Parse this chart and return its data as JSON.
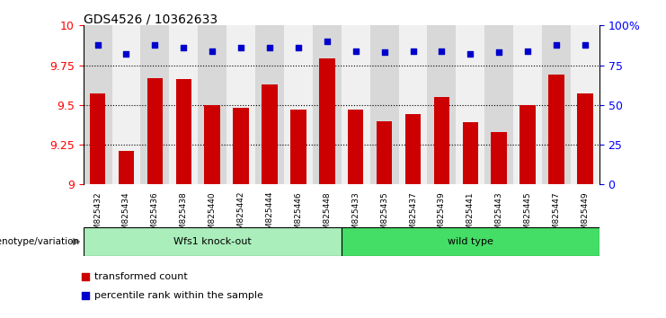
{
  "title": "GDS4526 / 10362633",
  "categories": [
    "GSM825432",
    "GSM825434",
    "GSM825436",
    "GSM825438",
    "GSM825440",
    "GSM825442",
    "GSM825444",
    "GSM825446",
    "GSM825448",
    "GSM825433",
    "GSM825435",
    "GSM825437",
    "GSM825439",
    "GSM825441",
    "GSM825443",
    "GSM825445",
    "GSM825447",
    "GSM825449"
  ],
  "bar_values": [
    9.57,
    9.21,
    9.67,
    9.66,
    9.5,
    9.48,
    9.63,
    9.47,
    9.79,
    9.47,
    9.4,
    9.44,
    9.55,
    9.39,
    9.33,
    9.5,
    9.69,
    9.57
  ],
  "percentile_values": [
    88,
    82,
    88,
    86,
    84,
    86,
    86,
    86,
    90,
    84,
    83,
    84,
    84,
    82,
    83,
    84,
    88,
    88
  ],
  "bar_color": "#cc0000",
  "percentile_color": "#0000cc",
  "ylim_left": [
    9.0,
    10.0
  ],
  "ylim_right": [
    0,
    100
  ],
  "yticks_left": [
    9.0,
    9.25,
    9.5,
    9.75,
    10.0
  ],
  "ytick_labels_left": [
    "9",
    "9.25",
    "9.5",
    "9.75",
    "10"
  ],
  "yticks_right": [
    0,
    25,
    50,
    75,
    100
  ],
  "ytick_labels_right": [
    "0",
    "25",
    "50",
    "75",
    "100%"
  ],
  "groups": [
    {
      "label": "Wfs1 knock-out",
      "start": 0,
      "end": 9,
      "color": "#aaeebb"
    },
    {
      "label": "wild type",
      "start": 9,
      "end": 18,
      "color": "#44dd66"
    }
  ],
  "group_row_label": "genotype/variation",
  "legend_bar_label": "transformed count",
  "legend_pct_label": "percentile rank within the sample",
  "bar_width": 0.55,
  "col_bg_even": "#d8d8d8",
  "col_bg_odd": "#f0f0f0"
}
